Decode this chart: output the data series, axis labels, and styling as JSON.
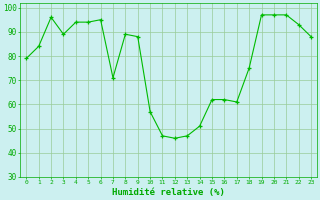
{
  "x": [
    0,
    1,
    2,
    3,
    4,
    5,
    6,
    7,
    8,
    9,
    10,
    11,
    12,
    13,
    14,
    15,
    16,
    17,
    18,
    19,
    20,
    21,
    22,
    23
  ],
  "y": [
    79,
    84,
    96,
    89,
    94,
    94,
    95,
    71,
    89,
    88,
    57,
    47,
    46,
    47,
    51,
    62,
    62,
    61,
    75,
    97,
    97,
    97,
    93,
    88
  ],
  "line_color": "#00bb00",
  "marker_color": "#00bb00",
  "bg_color": "#ccf0f0",
  "grid_color": "#99cc99",
  "xlabel": "Humidité relative (%)",
  "xlabel_color": "#00aa00",
  "tick_color": "#00aa00",
  "ylim": [
    30,
    102
  ],
  "yticks": [
    30,
    40,
    50,
    60,
    70,
    80,
    90,
    100
  ],
  "xlim": [
    -0.5,
    23.5
  ]
}
